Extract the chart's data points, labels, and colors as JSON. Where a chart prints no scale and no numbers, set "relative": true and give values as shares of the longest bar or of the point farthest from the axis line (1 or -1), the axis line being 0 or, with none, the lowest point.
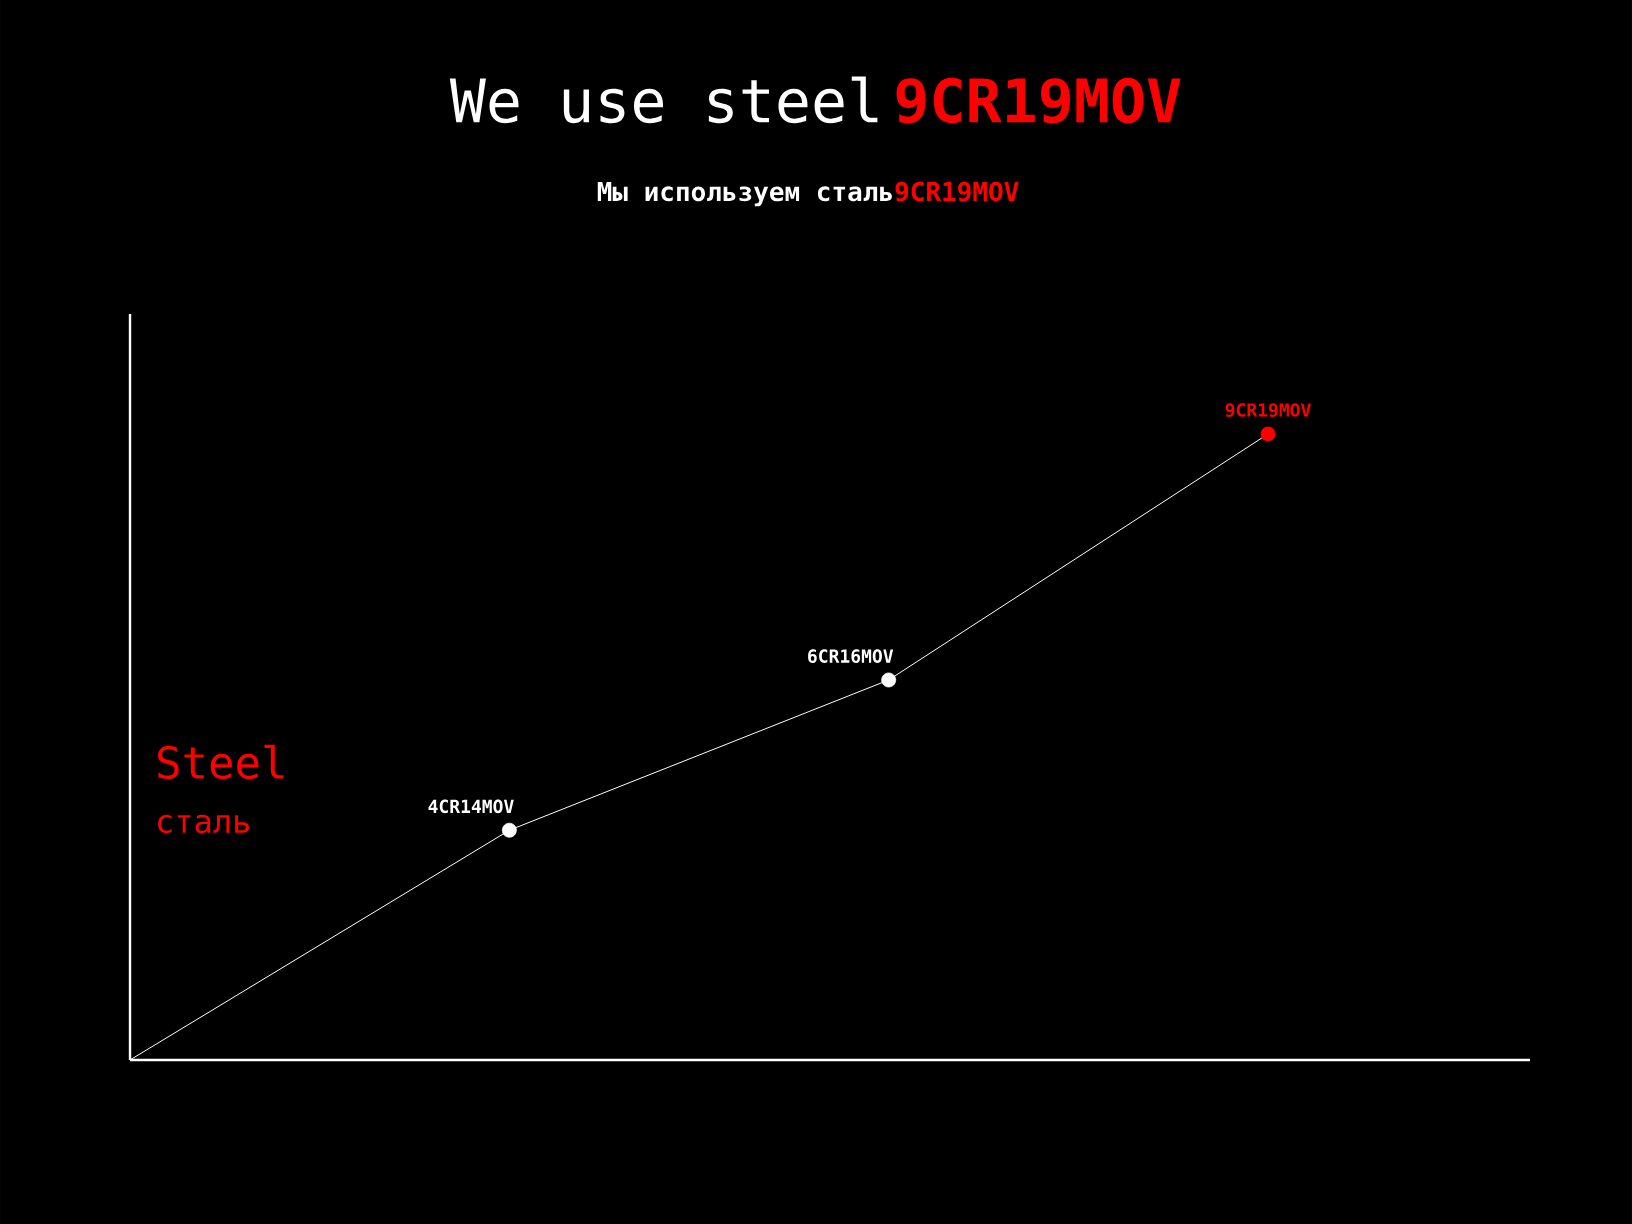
{
  "chart_data": {
    "type": "line",
    "title": "We use steel",
    "subtitle": "Мы используем сталь",
    "annotations": [
      "9CR19MOV",
      "9CR19MOV",
      "Steel",
      "сталь",
      "4CR14MOV",
      "6CR16MOV",
      "9CR19MOV"
    ],
    "categories": [
      null,
      null,
      null,
      null
    ],
    "relative": true,
    "series": [
      {
        "color": "#ffffff",
        "values": [
          0,
          0.367,
          0.607,
          1
        ],
        "colors": [
          null,
          "#ffffff",
          "#ffffff",
          "#ff0000"
        ]
      }
    ],
    "marker": "circle",
    "line_style": "solid"
  }
}
